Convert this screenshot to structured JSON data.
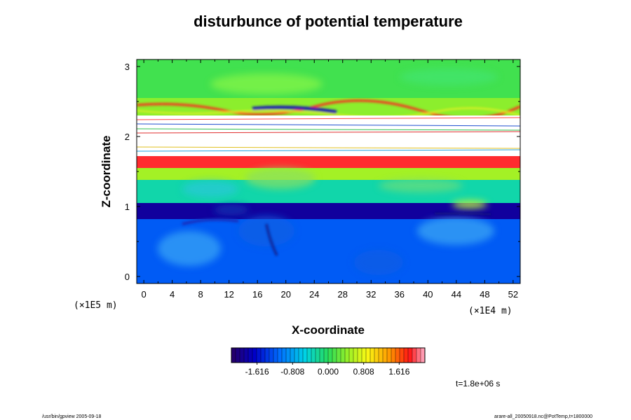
{
  "chart_data": {
    "type": "heatmap",
    "title": "disturbunce of potential temperature",
    "xlabel": "X-coordinate",
    "ylabel": "Z-coordinate",
    "x_scale_note": "(×1E4 m)",
    "y_scale_note": "(×1E5 m)",
    "xlim": [
      -1,
      53
    ],
    "ylim": [
      -0.1,
      3.1
    ],
    "x_ticks": [
      "0",
      "4",
      "8",
      "12",
      "16",
      "20",
      "24",
      "28",
      "32",
      "36",
      "40",
      "44",
      "48",
      "52"
    ],
    "y_ticks": [
      "0",
      "1",
      "2",
      "3"
    ],
    "colorbar": {
      "min": -2.2,
      "max": 2.2,
      "ticks": [
        "-1.616",
        "-0.808",
        "0.000",
        "0.808",
        "1.616"
      ]
    },
    "time_label": "t=1.8e+06 s",
    "field_bands": [
      {
        "z_range": [
          -0.1,
          0.82
        ],
        "value": -1.2
      },
      {
        "z_range": [
          0.82,
          1.05
        ],
        "value": -1.9
      },
      {
        "z_range": [
          1.05,
          1.38
        ],
        "value": -0.3
      },
      {
        "z_range": [
          1.38,
          1.55
        ],
        "value": 0.5
      },
      {
        "z_range": [
          1.55,
          1.72
        ],
        "value": 1.9
      },
      {
        "z_range": [
          1.72,
          2.3
        ],
        "value": null
      },
      {
        "z_range": [
          2.3,
          2.55
        ],
        "value": 0.4
      },
      {
        "z_range": [
          2.55,
          3.1
        ],
        "value": 0.1
      }
    ]
  },
  "footer": {
    "left": "/usr/bin/gpview 2005-09-18",
    "right": "arare-all_20050918.nc@PotTemp,t=1800000"
  }
}
